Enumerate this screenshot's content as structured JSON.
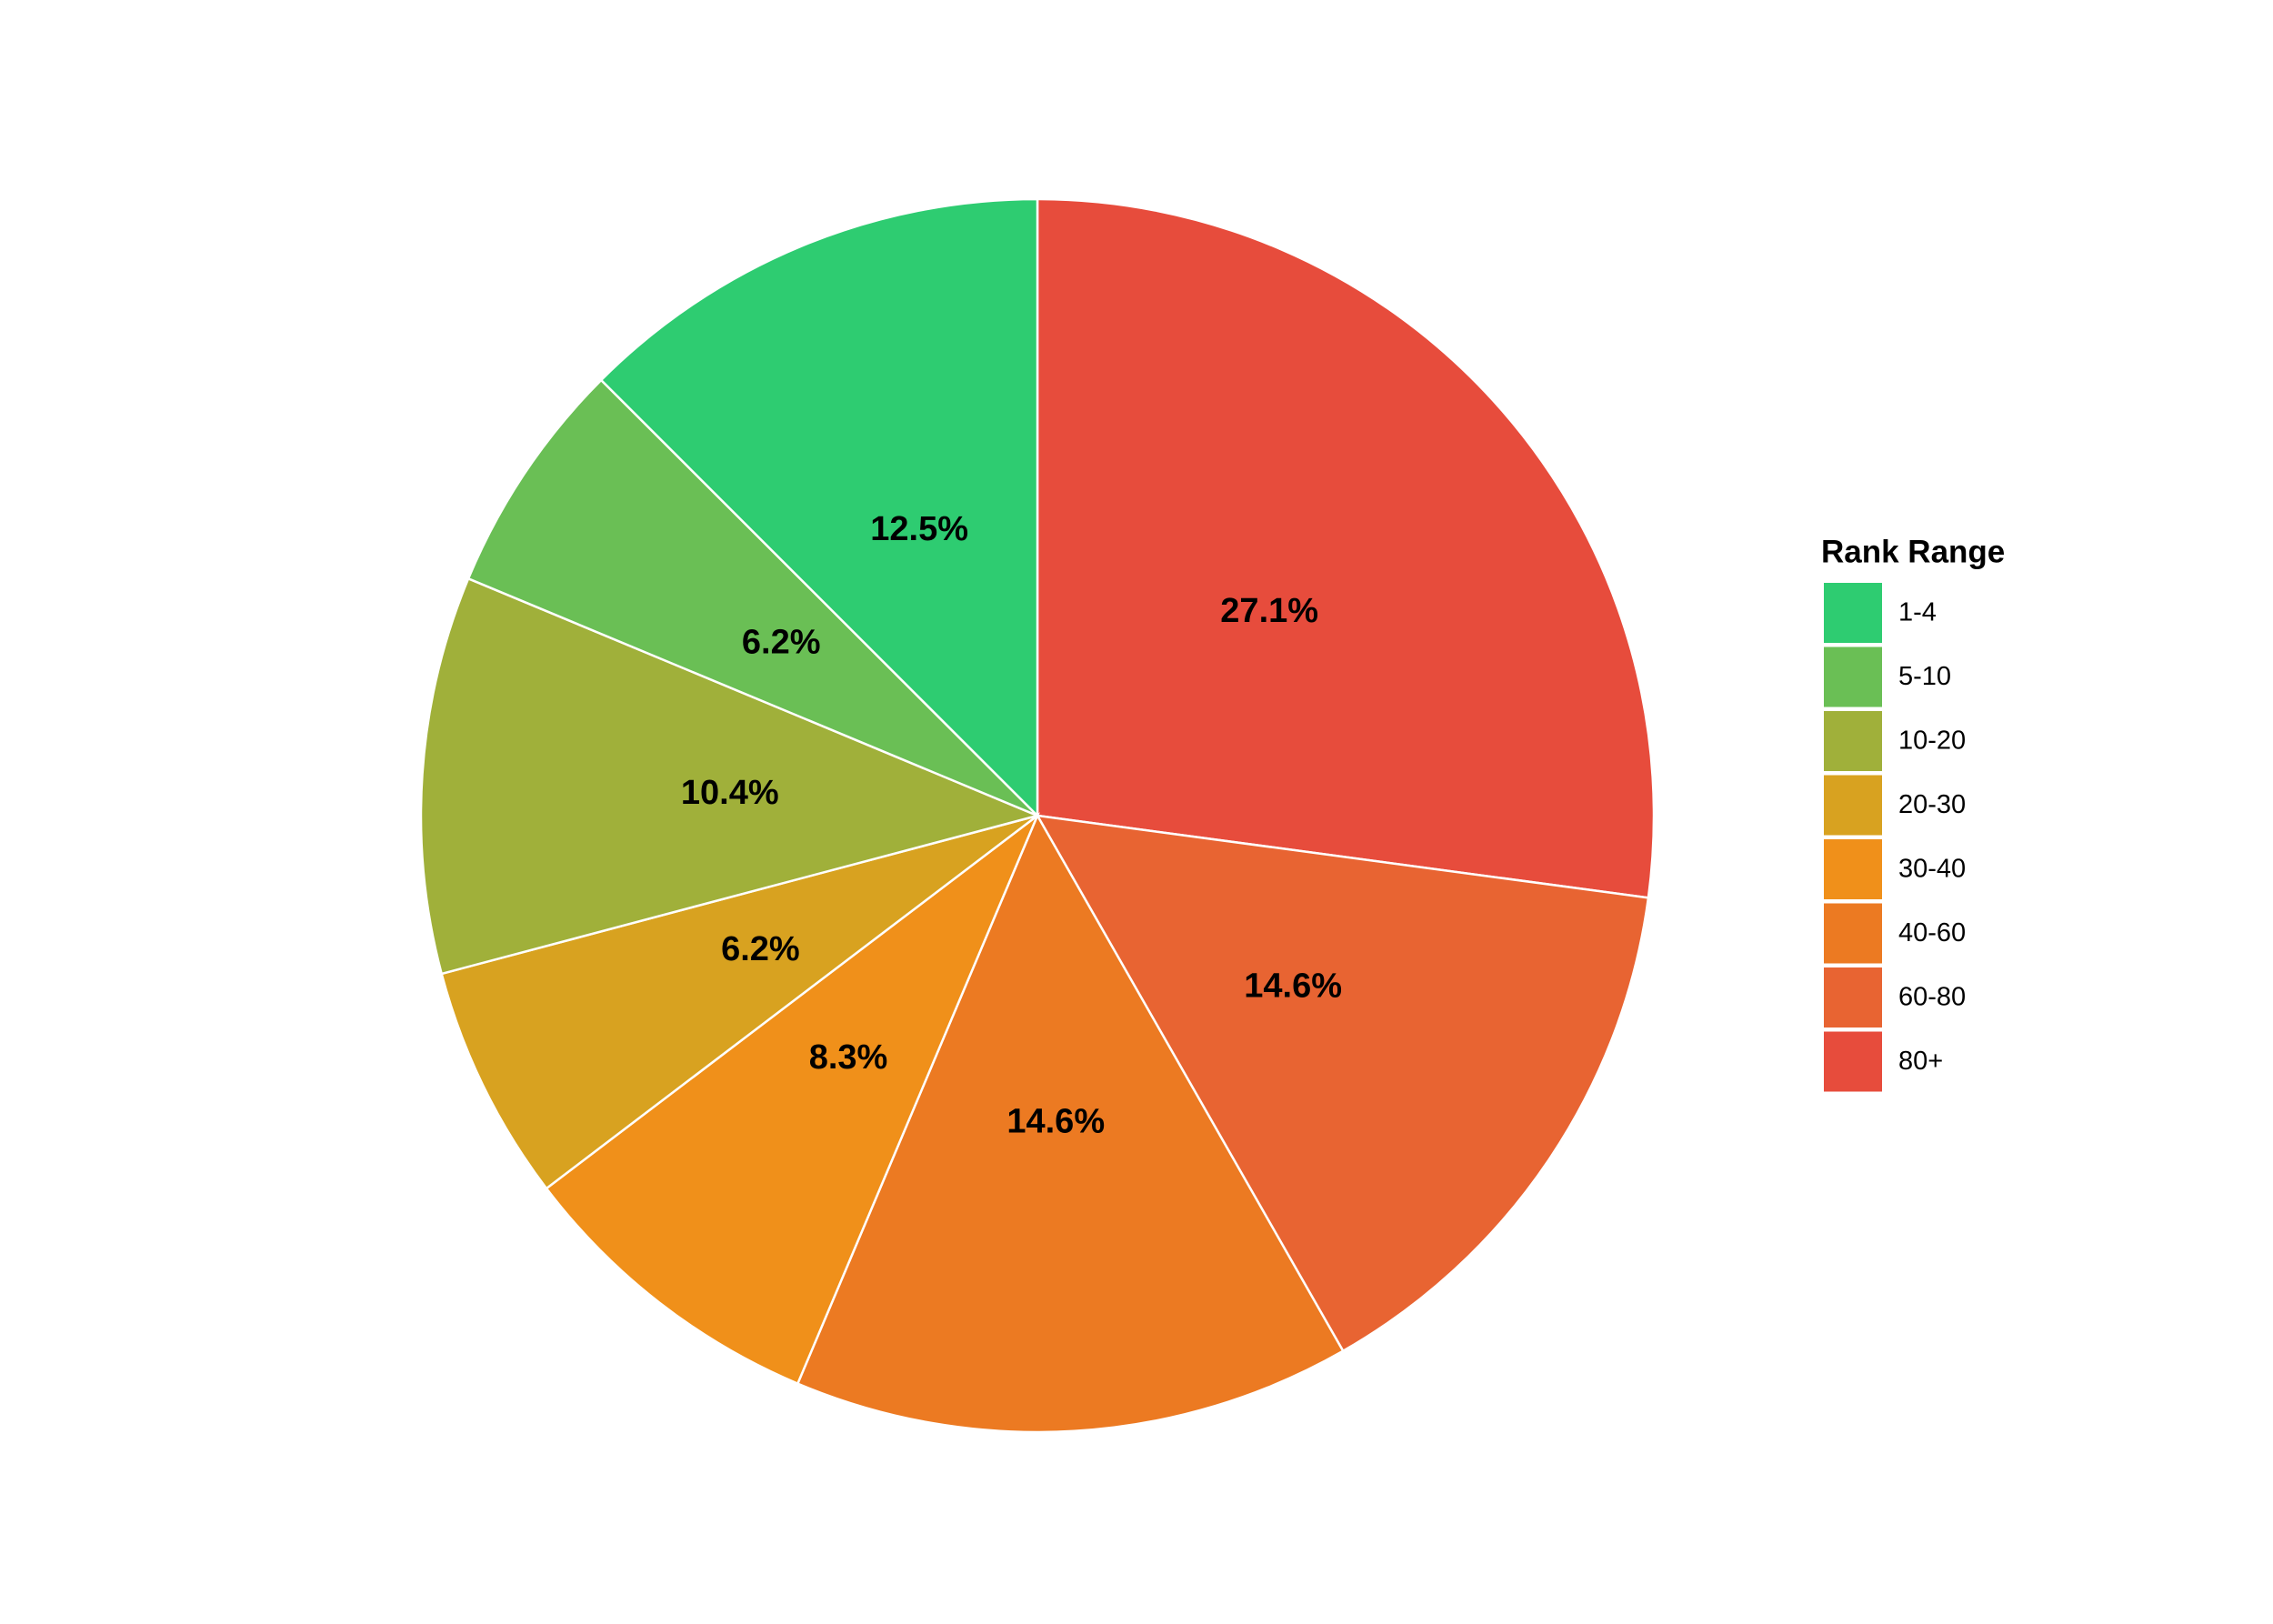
{
  "chart_data": {
    "type": "pie",
    "legend_title": "Rank Range",
    "categories": [
      "1-4",
      "5-10",
      "10-20",
      "20-30",
      "30-40",
      "40-60",
      "60-80",
      "80+"
    ],
    "values": [
      12.5,
      6.2,
      10.4,
      6.2,
      8.3,
      14.6,
      14.6,
      27.1
    ],
    "value_labels": [
      "12.5%",
      "6.2%",
      "10.4%",
      "6.2%",
      "8.3%",
      "14.6%",
      "14.6%",
      "27.1%"
    ],
    "colors": [
      "#2ecc71",
      "#6abf55",
      "#a0b03a",
      "#d8a220",
      "#f0901a",
      "#ec7a22",
      "#e86432",
      "#e74c3c"
    ],
    "legend": "right"
  }
}
